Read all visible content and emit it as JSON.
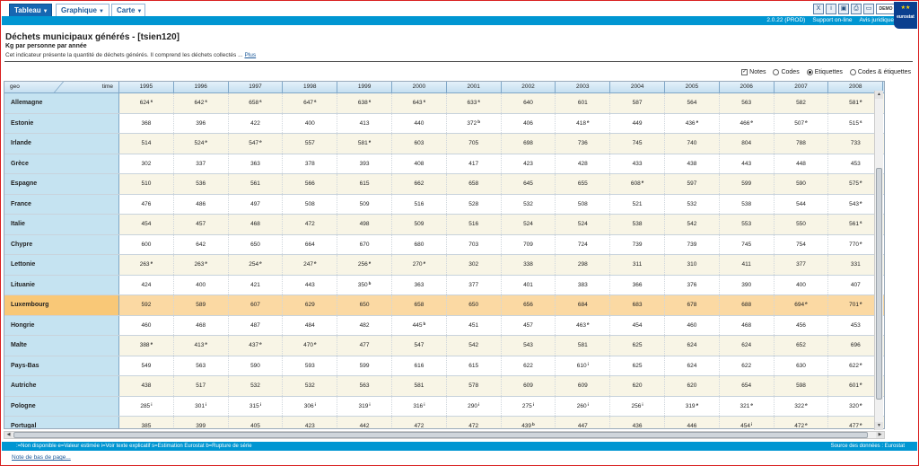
{
  "toolbar": {
    "tabs": [
      {
        "label": "Tableau"
      },
      {
        "label": "Graphique"
      },
      {
        "label": "Carte"
      }
    ],
    "icons": [
      "excel-export-icon",
      "info-icon",
      "save-icon",
      "print-icon",
      "folder-icon",
      "demo-icon"
    ],
    "demo_label": "DEMO"
  },
  "infobar": {
    "version": "2.0.22 (PROD)",
    "support": "Support on-line",
    "legal": "Avis juridique",
    "logo_text": "eurostat"
  },
  "header": {
    "title": "Déchets municipaux générés - [tsien120]",
    "subtitle": "Kg par personne par année",
    "description": "Cet indicateur présente la quantité de déchets générés. Il comprend les déchets collectés ...",
    "more": "Plus"
  },
  "options": {
    "notes": "Notes",
    "codes": "Codes",
    "labels": "Etiquettes",
    "codes_labels": "Codes & étiquettes"
  },
  "table": {
    "geo_label": "geo",
    "time_label": "time",
    "years": [
      "1995",
      "1996",
      "1997",
      "1998",
      "1999",
      "2000",
      "2001",
      "2002",
      "2003",
      "2004",
      "2005",
      "2006",
      "2007",
      "2008"
    ],
    "rows": [
      {
        "geo": "Allemagne",
        "cells": [
          [
            "624",
            "s"
          ],
          [
            "642",
            "s"
          ],
          [
            "658",
            "s"
          ],
          [
            "647",
            "s"
          ],
          [
            "638",
            "s"
          ],
          [
            "643",
            "s"
          ],
          [
            "633",
            "s"
          ],
          [
            "640",
            ""
          ],
          [
            "601",
            ""
          ],
          [
            "587",
            ""
          ],
          [
            "564",
            ""
          ],
          [
            "563",
            ""
          ],
          [
            "582",
            ""
          ],
          [
            "581",
            "e"
          ]
        ]
      },
      {
        "geo": "Estonie",
        "cells": [
          [
            "368",
            ""
          ],
          [
            "396",
            ""
          ],
          [
            "422",
            ""
          ],
          [
            "400",
            ""
          ],
          [
            "413",
            ""
          ],
          [
            "440",
            ""
          ],
          [
            "372",
            "b"
          ],
          [
            "406",
            ""
          ],
          [
            "418",
            "e"
          ],
          [
            "449",
            ""
          ],
          [
            "436",
            "e"
          ],
          [
            "466",
            "e"
          ],
          [
            "507",
            "e"
          ],
          [
            "515",
            "s"
          ]
        ]
      },
      {
        "geo": "Irlande",
        "cells": [
          [
            "514",
            ""
          ],
          [
            "524",
            "e"
          ],
          [
            "547",
            "e"
          ],
          [
            "557",
            ""
          ],
          [
            "581",
            "e"
          ],
          [
            "603",
            ""
          ],
          [
            "705",
            ""
          ],
          [
            "698",
            ""
          ],
          [
            "736",
            ""
          ],
          [
            "745",
            ""
          ],
          [
            "740",
            ""
          ],
          [
            "804",
            ""
          ],
          [
            "788",
            ""
          ],
          [
            "733",
            ""
          ]
        ]
      },
      {
        "geo": "Grèce",
        "cells": [
          [
            "302",
            ""
          ],
          [
            "337",
            ""
          ],
          [
            "363",
            ""
          ],
          [
            "378",
            ""
          ],
          [
            "393",
            ""
          ],
          [
            "408",
            ""
          ],
          [
            "417",
            ""
          ],
          [
            "423",
            ""
          ],
          [
            "428",
            ""
          ],
          [
            "433",
            ""
          ],
          [
            "438",
            ""
          ],
          [
            "443",
            ""
          ],
          [
            "448",
            ""
          ],
          [
            "453",
            ""
          ]
        ]
      },
      {
        "geo": "Espagne",
        "cells": [
          [
            "510",
            ""
          ],
          [
            "536",
            ""
          ],
          [
            "561",
            ""
          ],
          [
            "566",
            ""
          ],
          [
            "615",
            ""
          ],
          [
            "662",
            ""
          ],
          [
            "658",
            ""
          ],
          [
            "645",
            ""
          ],
          [
            "655",
            ""
          ],
          [
            "608",
            "e"
          ],
          [
            "597",
            ""
          ],
          [
            "599",
            ""
          ],
          [
            "590",
            ""
          ],
          [
            "575",
            "e"
          ]
        ]
      },
      {
        "geo": "France",
        "cells": [
          [
            "476",
            ""
          ],
          [
            "486",
            ""
          ],
          [
            "497",
            ""
          ],
          [
            "508",
            ""
          ],
          [
            "509",
            ""
          ],
          [
            "516",
            ""
          ],
          [
            "528",
            ""
          ],
          [
            "532",
            ""
          ],
          [
            "508",
            ""
          ],
          [
            "521",
            ""
          ],
          [
            "532",
            ""
          ],
          [
            "538",
            ""
          ],
          [
            "544",
            ""
          ],
          [
            "543",
            "e"
          ]
        ]
      },
      {
        "geo": "Italie",
        "cells": [
          [
            "454",
            ""
          ],
          [
            "457",
            ""
          ],
          [
            "468",
            ""
          ],
          [
            "472",
            ""
          ],
          [
            "498",
            ""
          ],
          [
            "509",
            ""
          ],
          [
            "516",
            ""
          ],
          [
            "524",
            ""
          ],
          [
            "524",
            ""
          ],
          [
            "538",
            ""
          ],
          [
            "542",
            ""
          ],
          [
            "553",
            ""
          ],
          [
            "550",
            ""
          ],
          [
            "561",
            "s"
          ]
        ]
      },
      {
        "geo": "Chypre",
        "cells": [
          [
            "600",
            ""
          ],
          [
            "642",
            ""
          ],
          [
            "650",
            ""
          ],
          [
            "664",
            ""
          ],
          [
            "670",
            ""
          ],
          [
            "680",
            ""
          ],
          [
            "703",
            ""
          ],
          [
            "709",
            ""
          ],
          [
            "724",
            ""
          ],
          [
            "739",
            ""
          ],
          [
            "739",
            ""
          ],
          [
            "745",
            ""
          ],
          [
            "754",
            ""
          ],
          [
            "770",
            "e"
          ]
        ]
      },
      {
        "geo": "Lettonie",
        "cells": [
          [
            "263",
            "e"
          ],
          [
            "263",
            "e"
          ],
          [
            "254",
            "e"
          ],
          [
            "247",
            "e"
          ],
          [
            "256",
            "e"
          ],
          [
            "270",
            "e"
          ],
          [
            "302",
            ""
          ],
          [
            "338",
            ""
          ],
          [
            "298",
            ""
          ],
          [
            "311",
            ""
          ],
          [
            "310",
            ""
          ],
          [
            "411",
            ""
          ],
          [
            "377",
            ""
          ],
          [
            "331",
            ""
          ]
        ]
      },
      {
        "geo": "Lituanie",
        "cells": [
          [
            "424",
            ""
          ],
          [
            "400",
            ""
          ],
          [
            "421",
            ""
          ],
          [
            "443",
            ""
          ],
          [
            "350",
            "b"
          ],
          [
            "363",
            ""
          ],
          [
            "377",
            ""
          ],
          [
            "401",
            ""
          ],
          [
            "383",
            ""
          ],
          [
            "366",
            ""
          ],
          [
            "376",
            ""
          ],
          [
            "390",
            ""
          ],
          [
            "400",
            ""
          ],
          [
            "407",
            ""
          ]
        ]
      },
      {
        "geo": "Luxembourg",
        "highlight": true,
        "cells": [
          [
            "592",
            ""
          ],
          [
            "589",
            ""
          ],
          [
            "607",
            ""
          ],
          [
            "629",
            ""
          ],
          [
            "650",
            ""
          ],
          [
            "658",
            ""
          ],
          [
            "650",
            ""
          ],
          [
            "656",
            ""
          ],
          [
            "684",
            ""
          ],
          [
            "683",
            ""
          ],
          [
            "678",
            ""
          ],
          [
            "688",
            ""
          ],
          [
            "694",
            "e"
          ],
          [
            "701",
            "e"
          ]
        ]
      },
      {
        "geo": "Hongrie",
        "cells": [
          [
            "460",
            ""
          ],
          [
            "468",
            ""
          ],
          [
            "487",
            ""
          ],
          [
            "484",
            ""
          ],
          [
            "482",
            ""
          ],
          [
            "445",
            "b"
          ],
          [
            "451",
            ""
          ],
          [
            "457",
            ""
          ],
          [
            "463",
            "e"
          ],
          [
            "454",
            ""
          ],
          [
            "460",
            ""
          ],
          [
            "468",
            ""
          ],
          [
            "456",
            ""
          ],
          [
            "453",
            ""
          ]
        ]
      },
      {
        "geo": "Malte",
        "cells": [
          [
            "388",
            "e"
          ],
          [
            "413",
            "e"
          ],
          [
            "437",
            "e"
          ],
          [
            "470",
            "e"
          ],
          [
            "477",
            ""
          ],
          [
            "547",
            ""
          ],
          [
            "542",
            ""
          ],
          [
            "543",
            ""
          ],
          [
            "581",
            ""
          ],
          [
            "625",
            ""
          ],
          [
            "624",
            ""
          ],
          [
            "624",
            ""
          ],
          [
            "652",
            ""
          ],
          [
            "696",
            ""
          ]
        ]
      },
      {
        "geo": "Pays-Bas",
        "cells": [
          [
            "549",
            ""
          ],
          [
            "563",
            ""
          ],
          [
            "590",
            ""
          ],
          [
            "593",
            ""
          ],
          [
            "599",
            ""
          ],
          [
            "616",
            ""
          ],
          [
            "615",
            ""
          ],
          [
            "622",
            ""
          ],
          [
            "610",
            "i"
          ],
          [
            "625",
            ""
          ],
          [
            "624",
            ""
          ],
          [
            "622",
            ""
          ],
          [
            "630",
            ""
          ],
          [
            "622",
            "e"
          ]
        ]
      },
      {
        "geo": "Autriche",
        "cells": [
          [
            "438",
            ""
          ],
          [
            "517",
            ""
          ],
          [
            "532",
            ""
          ],
          [
            "532",
            ""
          ],
          [
            "563",
            ""
          ],
          [
            "581",
            ""
          ],
          [
            "578",
            ""
          ],
          [
            "609",
            ""
          ],
          [
            "609",
            ""
          ],
          [
            "620",
            ""
          ],
          [
            "620",
            ""
          ],
          [
            "654",
            ""
          ],
          [
            "598",
            ""
          ],
          [
            "601",
            "e"
          ]
        ]
      },
      {
        "geo": "Pologne",
        "cells": [
          [
            "285",
            "i"
          ],
          [
            "301",
            "i"
          ],
          [
            "315",
            "i"
          ],
          [
            "306",
            "i"
          ],
          [
            "319",
            "i"
          ],
          [
            "316",
            "i"
          ],
          [
            "290",
            "i"
          ],
          [
            "275",
            "i"
          ],
          [
            "260",
            "i"
          ],
          [
            "256",
            "i"
          ],
          [
            "319",
            "e"
          ],
          [
            "321",
            "e"
          ],
          [
            "322",
            "e"
          ],
          [
            "320",
            "e"
          ]
        ]
      },
      {
        "geo": "Portugal",
        "cells": [
          [
            "385",
            ""
          ],
          [
            "399",
            ""
          ],
          [
            "405",
            ""
          ],
          [
            "423",
            ""
          ],
          [
            "442",
            ""
          ],
          [
            "472",
            ""
          ],
          [
            "472",
            ""
          ],
          [
            "439",
            "b"
          ],
          [
            "447",
            ""
          ],
          [
            "436",
            ""
          ],
          [
            "446",
            ""
          ],
          [
            "454",
            "i"
          ],
          [
            "472",
            "e"
          ],
          [
            "477",
            "e"
          ]
        ]
      }
    ]
  },
  "footer": {
    "legend": ":=Non disponible e=Valeur estimée i=Voir texte explicatif s=Estimation Eurostat b=Rupture de série",
    "source": "Source des données : Eurostat",
    "bottom_link": "Note de bas de page..."
  }
}
